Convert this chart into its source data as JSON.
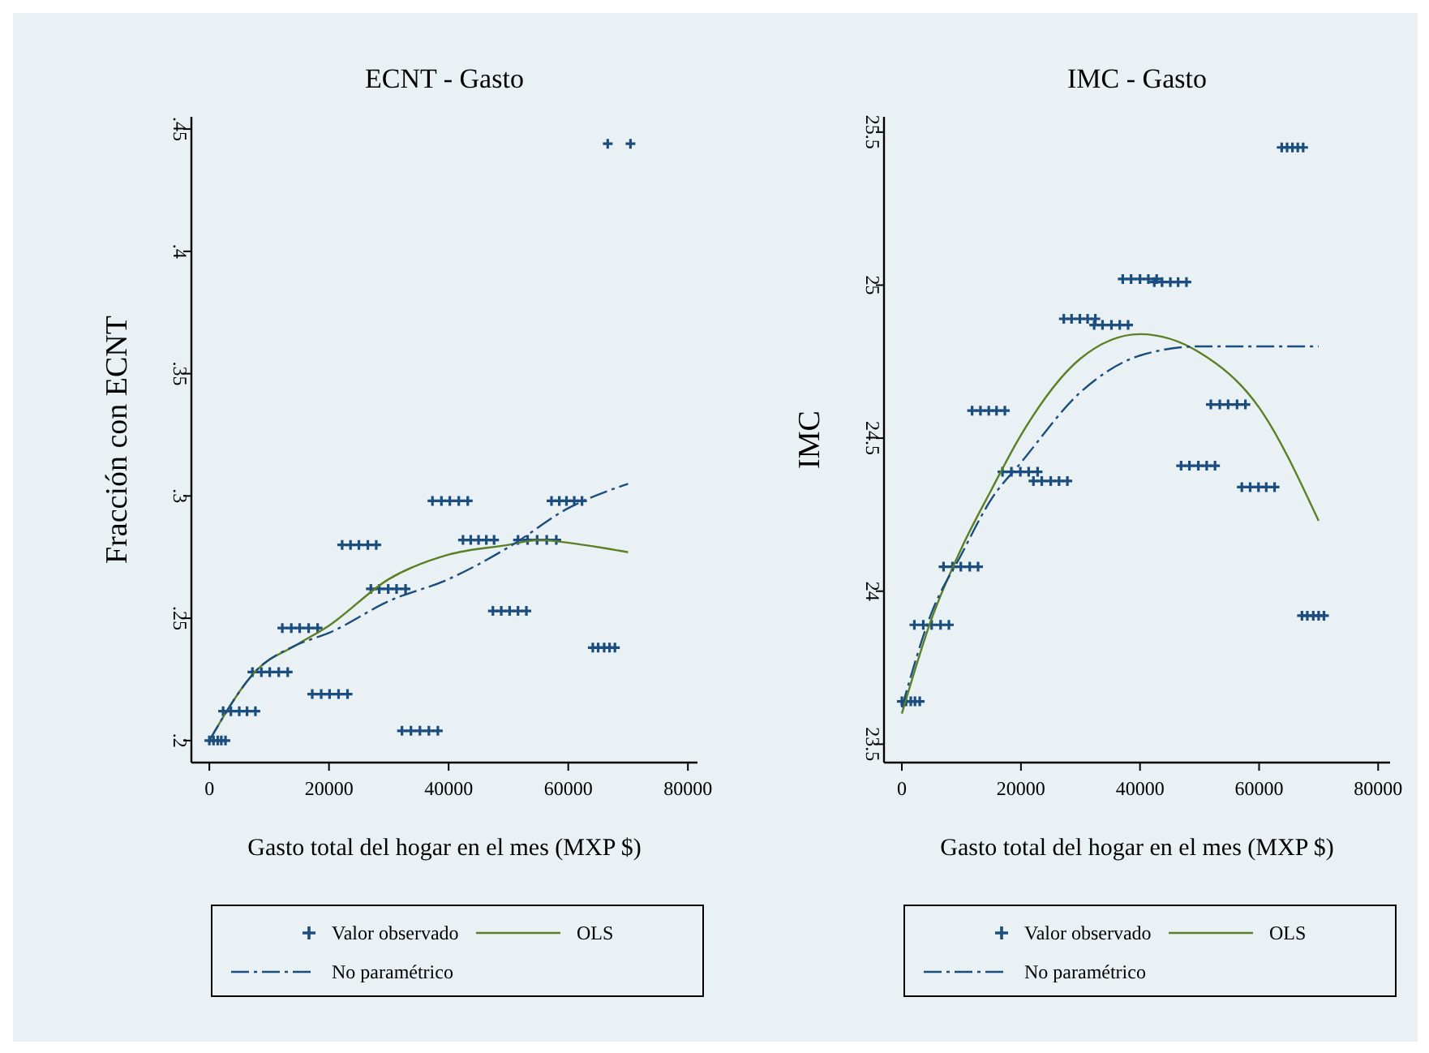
{
  "chart_data": [
    {
      "type": "scatter",
      "title": "ECNT - Gasto",
      "xlabel": "Gasto total del hogar en el mes (MXP $)",
      "ylabel": "Fracción con ECNT",
      "xlim": [
        -3000,
        81600
      ],
      "xticks": [
        0,
        20000,
        40000,
        60000,
        80000
      ],
      "ylim": [
        0.191,
        0.455
      ],
      "yticks": [
        {
          "value": 0.2,
          "label": ".2"
        },
        {
          "value": 0.25,
          "label": ".25"
        },
        {
          "value": 0.3,
          "label": ".3"
        },
        {
          "value": 0.35,
          "label": ".35"
        },
        {
          "value": 0.4,
          "label": ".4"
        },
        {
          "value": 0.45,
          "label": ".45"
        }
      ],
      "grid": false,
      "legend": "bottom",
      "series": [
        {
          "name": "Valor observado",
          "marker": "cross",
          "color": "#1b4d7e",
          "x": [
            0,
            700,
            1400,
            2000,
            2700,
            2300,
            3600,
            5000,
            6300,
            7700,
            7200,
            8700,
            10100,
            11600,
            13100,
            12200,
            13700,
            15100,
            16600,
            18100,
            17200,
            18700,
            20100,
            21600,
            23100,
            22200,
            23600,
            25000,
            26500,
            27900,
            27000,
            28400,
            29900,
            31300,
            32800,
            32200,
            33700,
            35200,
            36700,
            38200,
            37300,
            38800,
            40200,
            41700,
            43200,
            42400,
            43700,
            45000,
            46300,
            47600,
            47400,
            48800,
            50200,
            51600,
            53000,
            51600,
            53200,
            54800,
            56400,
            58000,
            57200,
            58500,
            59700,
            61000,
            62300,
            64100,
            65000,
            66000,
            66900,
            67800,
            66600,
            70400
          ],
          "values": [
            0.2,
            0.2,
            0.2,
            0.2,
            0.2,
            0.212,
            0.212,
            0.212,
            0.212,
            0.212,
            0.228,
            0.228,
            0.228,
            0.228,
            0.228,
            0.246,
            0.246,
            0.246,
            0.246,
            0.246,
            0.219,
            0.219,
            0.219,
            0.219,
            0.219,
            0.28,
            0.28,
            0.28,
            0.28,
            0.28,
            0.262,
            0.262,
            0.262,
            0.262,
            0.262,
            0.204,
            0.204,
            0.204,
            0.204,
            0.204,
            0.298,
            0.298,
            0.298,
            0.298,
            0.298,
            0.282,
            0.282,
            0.282,
            0.282,
            0.282,
            0.253,
            0.253,
            0.253,
            0.253,
            0.253,
            0.282,
            0.282,
            0.282,
            0.282,
            0.282,
            0.298,
            0.298,
            0.298,
            0.298,
            0.298,
            0.238,
            0.238,
            0.238,
            0.238,
            0.238,
            0.444,
            0.444
          ]
        },
        {
          "name": "OLS",
          "type": "line",
          "line_style": "solid",
          "color": "#5b7f24",
          "x": [
            0,
            8000,
            14500,
            20000,
            30000,
            40000,
            50000,
            55000,
            62500,
            70000
          ],
          "values": [
            0.2,
            0.229,
            0.239,
            0.247,
            0.266,
            0.276,
            0.28,
            0.282,
            0.28,
            0.277
          ]
        },
        {
          "name": "No paramétrico",
          "type": "line",
          "line_style": "dashed",
          "color": "#1b4d7e",
          "x": [
            0,
            8000,
            14500,
            20000,
            30000,
            40000,
            50000,
            60000,
            70000
          ],
          "values": [
            0.2,
            0.229,
            0.239,
            0.244,
            0.257,
            0.266,
            0.279,
            0.295,
            0.305
          ]
        }
      ]
    },
    {
      "type": "scatter",
      "title": "IMC - Gasto",
      "xlabel": "Gasto total del hogar en el mes (MXP $)",
      "ylabel": "IMC",
      "xlim": [
        -3000,
        82000
      ],
      "xticks": [
        0,
        20000,
        40000,
        60000,
        80000
      ],
      "ylim": [
        23.44,
        25.55
      ],
      "yticks": [
        23.5,
        24,
        24.5,
        25,
        25.5
      ],
      "grid": false,
      "legend": "bottom",
      "series": [
        {
          "name": "Valor observado",
          "marker": "cross",
          "color": "#1b4d7e",
          "x": [
            0,
            700,
            1500,
            2200,
            3000,
            2100,
            3600,
            5000,
            6500,
            7900,
            7000,
            8500,
            9900,
            11400,
            12800,
            11800,
            13200,
            14600,
            15900,
            17300,
            16900,
            18400,
            19900,
            21300,
            22800,
            22100,
            23500,
            25000,
            26400,
            27800,
            27200,
            28500,
            29900,
            31200,
            32500,
            32300,
            33700,
            35200,
            36600,
            38000,
            37100,
            38500,
            40000,
            41400,
            42800,
            42400,
            43700,
            45100,
            46400,
            47800,
            46900,
            48300,
            49800,
            51200,
            52600,
            51900,
            53400,
            54800,
            56300,
            57700,
            57100,
            58500,
            59900,
            61200,
            62600,
            63800,
            64700,
            65600,
            66500,
            67400,
            67200,
            68100,
            69100,
            70000,
            70900
          ],
          "values": [
            23.64,
            23.64,
            23.64,
            23.64,
            23.64,
            23.89,
            23.89,
            23.89,
            23.89,
            23.89,
            24.08,
            24.08,
            24.08,
            24.08,
            24.08,
            24.59,
            24.59,
            24.59,
            24.59,
            24.59,
            24.39,
            24.39,
            24.39,
            24.39,
            24.39,
            24.36,
            24.36,
            24.36,
            24.36,
            24.36,
            24.89,
            24.89,
            24.89,
            24.89,
            24.89,
            24.87,
            24.87,
            24.87,
            24.87,
            24.87,
            25.02,
            25.02,
            25.02,
            25.02,
            25.02,
            25.01,
            25.01,
            25.01,
            25.01,
            25.01,
            24.41,
            24.41,
            24.41,
            24.41,
            24.41,
            24.61,
            24.61,
            24.61,
            24.61,
            24.61,
            24.34,
            24.34,
            24.34,
            24.34,
            24.34,
            25.45,
            25.45,
            25.45,
            25.45,
            25.45,
            23.92,
            23.92,
            23.92,
            23.92,
            23.92
          ]
        },
        {
          "name": "OLS",
          "type": "line",
          "line_style": "solid",
          "color": "#5b7f24",
          "x": [
            0,
            5000,
            10000,
            15000,
            20000,
            30000,
            40000,
            50000,
            60000,
            70000
          ],
          "values": [
            23.6,
            23.91,
            24.14,
            24.33,
            24.51,
            24.76,
            24.84,
            24.78,
            24.6,
            24.23
          ]
        },
        {
          "name": "No paramétrico",
          "type": "line",
          "line_style": "dashed",
          "color": "#1b4d7e",
          "x": [
            0,
            5000,
            10000,
            15000,
            20000,
            30000,
            40000,
            50000,
            60000,
            70000
          ],
          "values": [
            23.62,
            23.93,
            24.12,
            24.3,
            24.42,
            24.65,
            24.77,
            24.8,
            24.8,
            24.8
          ]
        }
      ]
    }
  ]
}
